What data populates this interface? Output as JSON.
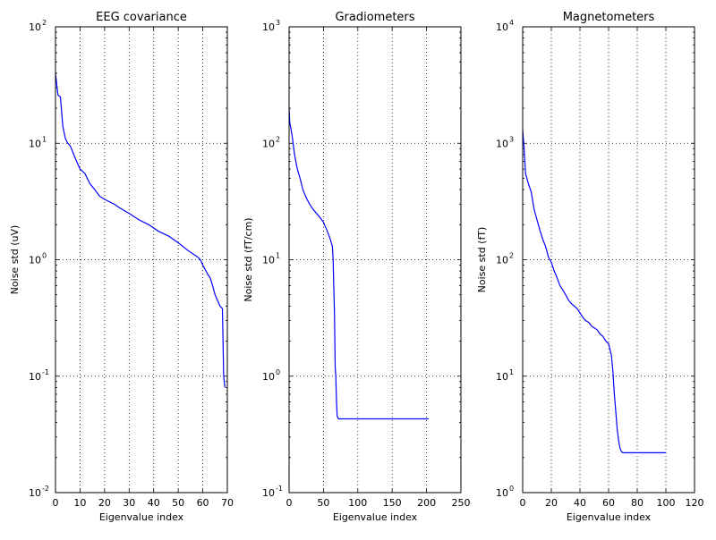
{
  "chart_data": [
    {
      "type": "line",
      "title": "EEG covariance",
      "xlabel": "Eigenvalue index",
      "ylabel": "Noise std (uV)",
      "yscale": "log",
      "xlim": [
        0,
        70
      ],
      "ylim": [
        0.01,
        100
      ],
      "xticks": [
        0,
        10,
        20,
        30,
        40,
        50,
        60,
        70
      ],
      "xtick_labels": [
        "0",
        "10",
        "20",
        "30",
        "40",
        "50",
        "60",
        "70"
      ],
      "ytick_exponents": [
        -2,
        -1,
        0,
        1,
        2
      ],
      "ytick_base": "10",
      "grid": true,
      "color": "#0000ff",
      "x": [
        0,
        1,
        2,
        3,
        4,
        5,
        6,
        8,
        10,
        12,
        14,
        16,
        18,
        20,
        24,
        26,
        30,
        34,
        38,
        42,
        46,
        50,
        54,
        58,
        59,
        60,
        62,
        63,
        64,
        65,
        67,
        68,
        68.5,
        69
      ],
      "y": [
        40,
        26,
        25,
        14,
        11,
        10,
        9.5,
        7.5,
        6.0,
        5.5,
        4.5,
        4.0,
        3.5,
        3.3,
        3.0,
        2.8,
        2.5,
        2.2,
        2.0,
        1.75,
        1.6,
        1.4,
        1.2,
        1.05,
        1.0,
        0.9,
        0.75,
        0.7,
        0.6,
        0.5,
        0.4,
        0.38,
        0.1,
        0.08
      ]
    },
    {
      "type": "line",
      "title": "Gradiometers",
      "xlabel": "Eigenvalue index",
      "ylabel": "Noise std (fT/cm)",
      "yscale": "log",
      "xlim": [
        0,
        250
      ],
      "ylim": [
        0.1,
        1000
      ],
      "xticks": [
        0,
        50,
        100,
        150,
        200,
        250
      ],
      "xtick_labels": [
        "0",
        "50",
        "100",
        "150",
        "200",
        "250"
      ],
      "ytick_exponents": [
        -1,
        0,
        1,
        2,
        3
      ],
      "ytick_base": "10",
      "grid": true,
      "color": "#0000ff",
      "x": [
        0,
        1,
        3,
        5,
        8,
        12,
        16,
        20,
        25,
        30,
        35,
        40,
        45,
        50,
        55,
        60,
        63,
        64,
        65,
        66,
        67,
        68,
        69,
        70,
        72,
        75,
        100,
        150,
        203
      ],
      "y": [
        200,
        150,
        130,
        110,
        80,
        60,
        50,
        40,
        34,
        30,
        27,
        25,
        23,
        21,
        18,
        15,
        13,
        10,
        6,
        3.5,
        1.2,
        1.0,
        0.6,
        0.45,
        0.43,
        0.43,
        0.43,
        0.43,
        0.43
      ]
    },
    {
      "type": "line",
      "title": "Magnetometers",
      "xlabel": "Eigenvalue index",
      "ylabel": "Noise std (fT)",
      "yscale": "log",
      "xlim": [
        0,
        120
      ],
      "ylim": [
        1,
        10000
      ],
      "xticks": [
        0,
        20,
        40,
        60,
        80,
        100,
        120
      ],
      "xtick_labels": [
        "0",
        "20",
        "40",
        "60",
        "80",
        "100",
        "120"
      ],
      "ytick_exponents": [
        0,
        1,
        2,
        3,
        4
      ],
      "ytick_base": "10",
      "grid": true,
      "color": "#0000ff",
      "x": [
        0,
        1,
        2,
        4,
        6,
        8,
        10,
        12,
        14,
        16,
        18,
        20,
        22,
        24,
        26,
        28,
        30,
        32,
        34,
        36,
        38,
        40,
        42,
        44,
        46,
        48,
        50,
        52,
        54,
        56,
        58,
        60,
        62,
        63,
        64,
        65,
        66,
        67,
        68,
        69,
        70,
        72,
        80,
        90,
        100
      ],
      "y": [
        1300,
        900,
        550,
        450,
        380,
        270,
        220,
        180,
        150,
        130,
        105,
        95,
        80,
        70,
        60,
        55,
        50,
        45,
        42,
        40,
        38,
        35,
        32,
        30,
        29,
        27,
        26,
        25,
        23,
        22,
        20,
        19,
        15,
        11,
        7,
        5,
        3.5,
        2.8,
        2.4,
        2.25,
        2.2,
        2.2,
        2.2,
        2.2,
        2.2
      ]
    }
  ]
}
